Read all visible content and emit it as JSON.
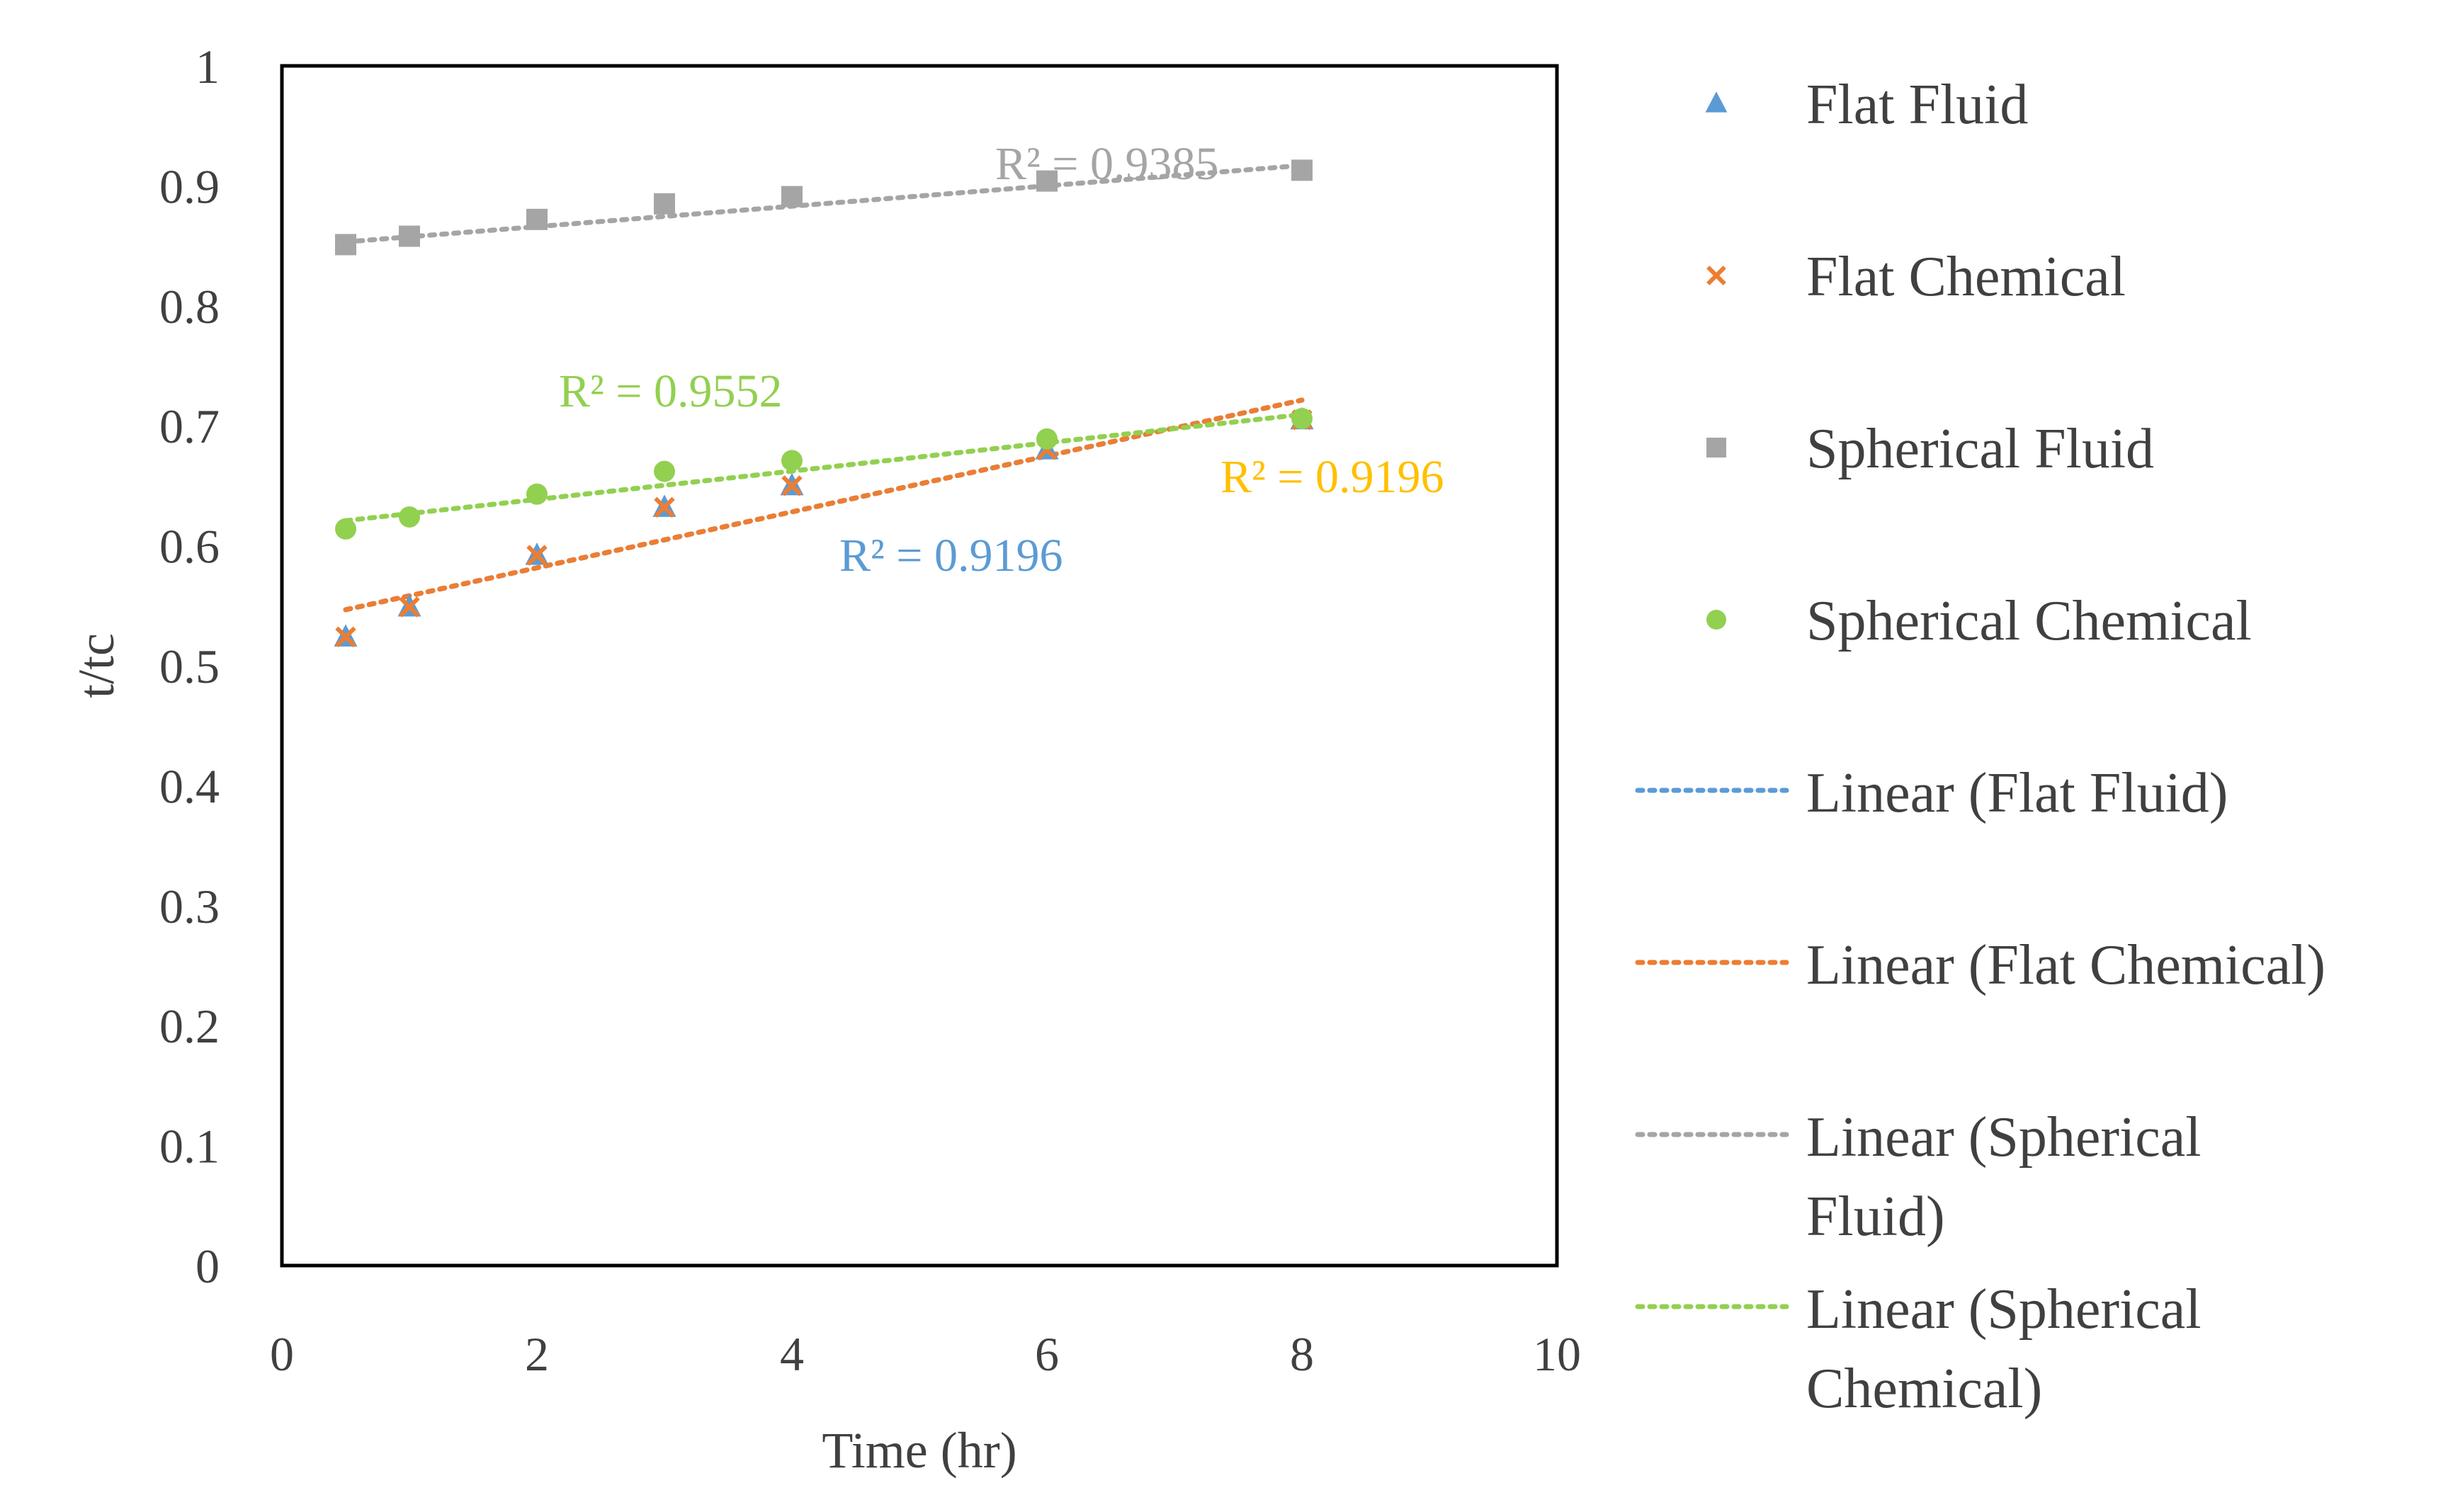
{
  "chart_data": {
    "type": "scatter",
    "title": "",
    "xlabel": "Time (hr)",
    "ylabel": "t/tc",
    "xlim": [
      0,
      10
    ],
    "ylim": [
      0,
      1
    ],
    "x_ticks": [
      "0",
      "2",
      "4",
      "6",
      "8",
      "10"
    ],
    "y_ticks": [
      "0",
      "0.1",
      "0.2",
      "0.3",
      "0.4",
      "0.5",
      "0.6",
      "0.7",
      "0.8",
      "0.9",
      "1"
    ],
    "grid": false,
    "legend_position": "right",
    "series": [
      {
        "name": "Flat Fluid",
        "marker": "triangle",
        "color": "#5B9BD5",
        "x": [
          0.5,
          1,
          2,
          3,
          4,
          6,
          8
        ],
        "y": [
          0.524,
          0.549,
          0.592,
          0.632,
          0.65,
          0.68,
          0.705
        ],
        "trendline": {
          "name": "Linear (Flat Fluid)",
          "slope": 0.0233,
          "intercept": 0.535,
          "x_range": [
            0.5,
            8
          ],
          "r2_label": "R² = 0.9196",
          "label_color": "#5B9BD5"
        }
      },
      {
        "name": "Flat Chemical",
        "marker": "x",
        "color": "#ED7D31",
        "x": [
          0.5,
          1,
          2,
          3,
          4,
          6,
          8
        ],
        "y": [
          0.524,
          0.549,
          0.592,
          0.632,
          0.65,
          0.68,
          0.705
        ],
        "trendline": {
          "name": "Linear (Flat Chemical)",
          "slope": 0.0233,
          "intercept": 0.535,
          "x_range": [
            0.5,
            8
          ],
          "r2_label": "R² = 0.9196",
          "label_color": "#FFC000"
        }
      },
      {
        "name": "Spherical Fluid",
        "marker": "square",
        "color": "#A5A5A5",
        "x": [
          0.5,
          1,
          2,
          3,
          4,
          6,
          8
        ],
        "y": [
          0.851,
          0.858,
          0.872,
          0.885,
          0.891,
          0.904,
          0.913
        ],
        "trendline": {
          "name": "Linear (Spherical Fluid)",
          "slope": 0.0085,
          "intercept": 0.849,
          "x_range": [
            0.5,
            8
          ],
          "r2_label": "R² = 0.9385",
          "label_color": "#A5A5A5"
        }
      },
      {
        "name": "Spherical Chemical",
        "marker": "circle",
        "color": "#92D050",
        "x": [
          0.5,
          1,
          2,
          3,
          4,
          6,
          8
        ],
        "y": [
          0.614,
          0.624,
          0.643,
          0.662,
          0.671,
          0.689,
          0.706
        ],
        "trendline": {
          "name": "Linear (Spherical Chemical)",
          "slope": 0.0118,
          "intercept": 0.615,
          "x_range": [
            0.5,
            8
          ],
          "r2_label": "R² = 0.9552",
          "label_color": "#92D050"
        }
      }
    ],
    "legend": [
      {
        "label": "Flat Fluid",
        "kind": "marker",
        "marker": "triangle",
        "color": "#5B9BD5"
      },
      {
        "label": "Flat Chemical",
        "kind": "marker",
        "marker": "x",
        "color": "#ED7D31"
      },
      {
        "label": "Spherical Fluid",
        "kind": "marker",
        "marker": "square",
        "color": "#A5A5A5"
      },
      {
        "label": "Spherical Chemical",
        "kind": "marker",
        "marker": "circle",
        "color": "#92D050"
      },
      {
        "label": "Linear (Flat Fluid)",
        "kind": "line",
        "color": "#5B9BD5"
      },
      {
        "label": "Linear (Flat Chemical)",
        "kind": "line",
        "color": "#ED7D31"
      },
      {
        "label": "Linear (Spherical Fluid)",
        "kind": "line",
        "color": "#A5A5A5",
        "lines": [
          "Linear (Spherical",
          "Fluid)"
        ]
      },
      {
        "label": "Linear (Spherical Chemical)",
        "kind": "line",
        "color": "#92D050",
        "lines": [
          "Linear (Spherical",
          "Chemical)"
        ]
      }
    ]
  }
}
